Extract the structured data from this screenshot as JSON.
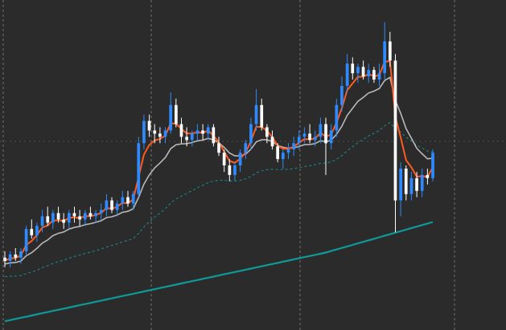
{
  "colors": {
    "background": "#2b2b2b",
    "grid_line": "#8a8a8a",
    "bull_candle": "#2e8bff",
    "bear_candle": "#ffffff",
    "fast_ma": "#ff5a1f",
    "mid_ma": "#b8b8b8",
    "slow_ma": "#0f9a9a",
    "dotted_ma": "#1a8f8f"
  },
  "chart_data": {
    "type": "candlestick",
    "title": "",
    "xlabel": "",
    "ylabel": "",
    "grid": "vertical dashed",
    "ylim": [
      0,
      100
    ],
    "candles": [
      {
        "o": 22,
        "h": 24,
        "l": 19,
        "c": 21
      },
      {
        "o": 21,
        "h": 24,
        "l": 19,
        "c": 23
      },
      {
        "o": 23,
        "h": 25,
        "l": 21,
        "c": 22
      },
      {
        "o": 22,
        "h": 25,
        "l": 20,
        "c": 24
      },
      {
        "o": 24,
        "h": 32,
        "l": 23,
        "c": 31
      },
      {
        "o": 31,
        "h": 34,
        "l": 28,
        "c": 29
      },
      {
        "o": 29,
        "h": 33,
        "l": 27,
        "c": 32
      },
      {
        "o": 32,
        "h": 37,
        "l": 30,
        "c": 35
      },
      {
        "o": 35,
        "h": 38,
        "l": 32,
        "c": 33
      },
      {
        "o": 33,
        "h": 37,
        "l": 31,
        "c": 36
      },
      {
        "o": 36,
        "h": 38,
        "l": 33,
        "c": 34
      },
      {
        "o": 34,
        "h": 36,
        "l": 31,
        "c": 33
      },
      {
        "o": 33,
        "h": 37,
        "l": 31,
        "c": 36
      },
      {
        "o": 36,
        "h": 38,
        "l": 33,
        "c": 35
      },
      {
        "o": 35,
        "h": 37,
        "l": 32,
        "c": 34
      },
      {
        "o": 34,
        "h": 37,
        "l": 32,
        "c": 36
      },
      {
        "o": 36,
        "h": 38,
        "l": 34,
        "c": 35
      },
      {
        "o": 35,
        "h": 37,
        "l": 33,
        "c": 36
      },
      {
        "o": 36,
        "h": 39,
        "l": 34,
        "c": 37
      },
      {
        "o": 37,
        "h": 42,
        "l": 35,
        "c": 40
      },
      {
        "o": 40,
        "h": 41,
        "l": 36,
        "c": 37
      },
      {
        "o": 37,
        "h": 40,
        "l": 35,
        "c": 39
      },
      {
        "o": 39,
        "h": 43,
        "l": 37,
        "c": 41
      },
      {
        "o": 41,
        "h": 43,
        "l": 38,
        "c": 39
      },
      {
        "o": 39,
        "h": 43,
        "l": 37,
        "c": 42
      },
      {
        "o": 42,
        "h": 60,
        "l": 41,
        "c": 58
      },
      {
        "o": 58,
        "h": 67,
        "l": 56,
        "c": 65
      },
      {
        "o": 65,
        "h": 67,
        "l": 60,
        "c": 62
      },
      {
        "o": 62,
        "h": 64,
        "l": 58,
        "c": 61
      },
      {
        "o": 61,
        "h": 63,
        "l": 58,
        "c": 60
      },
      {
        "o": 60,
        "h": 63,
        "l": 58,
        "c": 62
      },
      {
        "o": 62,
        "h": 74,
        "l": 61,
        "c": 70
      },
      {
        "o": 70,
        "h": 72,
        "l": 63,
        "c": 64
      },
      {
        "o": 64,
        "h": 66,
        "l": 58,
        "c": 60
      },
      {
        "o": 60,
        "h": 63,
        "l": 57,
        "c": 59
      },
      {
        "o": 59,
        "h": 62,
        "l": 57,
        "c": 61
      },
      {
        "o": 61,
        "h": 64,
        "l": 59,
        "c": 62
      },
      {
        "o": 62,
        "h": 64,
        "l": 59,
        "c": 61
      },
      {
        "o": 61,
        "h": 64,
        "l": 59,
        "c": 63
      },
      {
        "o": 63,
        "h": 64,
        "l": 57,
        "c": 58
      },
      {
        "o": 58,
        "h": 60,
        "l": 54,
        "c": 55
      },
      {
        "o": 55,
        "h": 56,
        "l": 49,
        "c": 51
      },
      {
        "o": 51,
        "h": 53,
        "l": 46,
        "c": 48
      },
      {
        "o": 48,
        "h": 52,
        "l": 46,
        "c": 51
      },
      {
        "o": 51,
        "h": 56,
        "l": 49,
        "c": 55
      },
      {
        "o": 55,
        "h": 59,
        "l": 53,
        "c": 58
      },
      {
        "o": 58,
        "h": 66,
        "l": 56,
        "c": 64
      },
      {
        "o": 64,
        "h": 75,
        "l": 62,
        "c": 70
      },
      {
        "o": 70,
        "h": 72,
        "l": 62,
        "c": 63
      },
      {
        "o": 63,
        "h": 64,
        "l": 58,
        "c": 60
      },
      {
        "o": 60,
        "h": 62,
        "l": 56,
        "c": 57
      },
      {
        "o": 57,
        "h": 58,
        "l": 52,
        "c": 53
      },
      {
        "o": 53,
        "h": 56,
        "l": 50,
        "c": 55
      },
      {
        "o": 55,
        "h": 58,
        "l": 53,
        "c": 56
      },
      {
        "o": 56,
        "h": 60,
        "l": 54,
        "c": 58
      },
      {
        "o": 58,
        "h": 62,
        "l": 56,
        "c": 60
      },
      {
        "o": 60,
        "h": 63,
        "l": 58,
        "c": 61
      },
      {
        "o": 61,
        "h": 64,
        "l": 58,
        "c": 59
      },
      {
        "o": 59,
        "h": 62,
        "l": 57,
        "c": 60
      },
      {
        "o": 60,
        "h": 66,
        "l": 58,
        "c": 64
      },
      {
        "o": 64,
        "h": 66,
        "l": 48,
        "c": 58
      },
      {
        "o": 58,
        "h": 64,
        "l": 56,
        "c": 62
      },
      {
        "o": 62,
        "h": 72,
        "l": 60,
        "c": 70
      },
      {
        "o": 70,
        "h": 79,
        "l": 68,
        "c": 76
      },
      {
        "o": 76,
        "h": 86,
        "l": 74,
        "c": 83
      },
      {
        "o": 83,
        "h": 85,
        "l": 78,
        "c": 80
      },
      {
        "o": 80,
        "h": 83,
        "l": 77,
        "c": 82
      },
      {
        "o": 82,
        "h": 84,
        "l": 78,
        "c": 79
      },
      {
        "o": 79,
        "h": 83,
        "l": 77,
        "c": 81
      },
      {
        "o": 81,
        "h": 82,
        "l": 77,
        "c": 78
      },
      {
        "o": 78,
        "h": 83,
        "l": 76,
        "c": 80
      },
      {
        "o": 80,
        "h": 96,
        "l": 78,
        "c": 90
      },
      {
        "o": 90,
        "h": 93,
        "l": 82,
        "c": 84
      },
      {
        "o": 84,
        "h": 86,
        "l": 30,
        "c": 40
      },
      {
        "o": 40,
        "h": 52,
        "l": 35,
        "c": 50
      },
      {
        "o": 50,
        "h": 51,
        "l": 40,
        "c": 42
      },
      {
        "o": 42,
        "h": 49,
        "l": 40,
        "c": 47
      },
      {
        "o": 47,
        "h": 49,
        "l": 41,
        "c": 43
      },
      {
        "o": 43,
        "h": 50,
        "l": 41,
        "c": 48
      },
      {
        "o": 48,
        "h": 50,
        "l": 45,
        "c": 47
      },
      {
        "o": 47,
        "h": 56,
        "l": 46,
        "c": 55
      }
    ]
  }
}
